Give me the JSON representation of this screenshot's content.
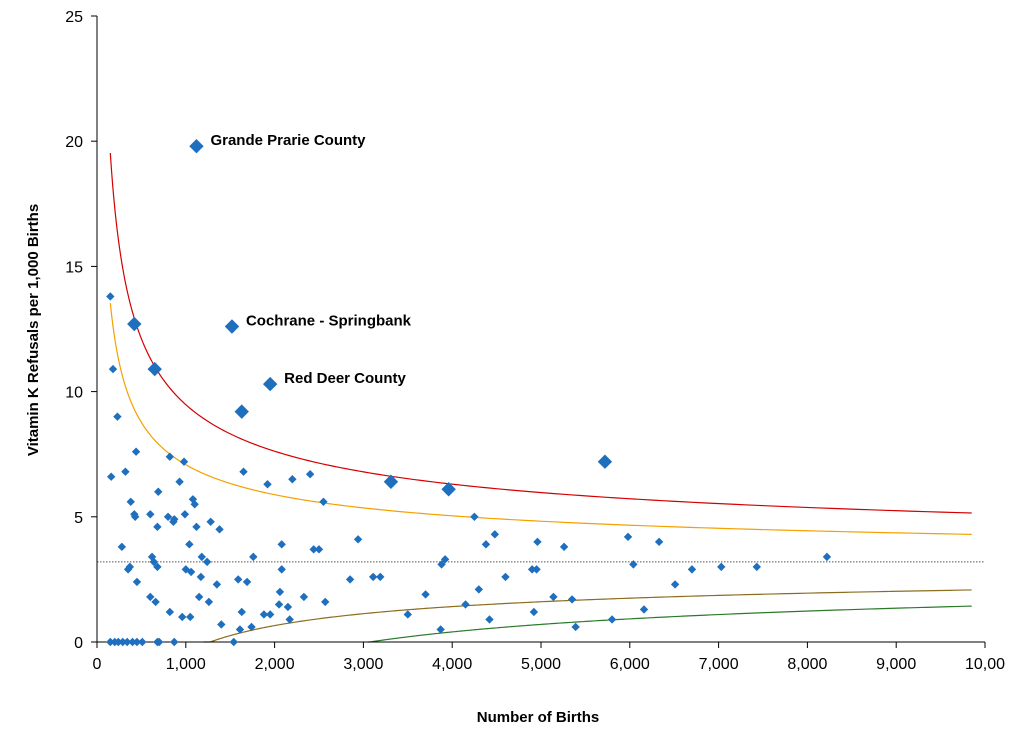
{
  "chart_data": {
    "type": "scatter",
    "xlabel": "Number of Births",
    "ylabel": "Vitamin K Refusals per 1,000 Births",
    "xlim": [
      0,
      10000
    ],
    "ylim": [
      0,
      25
    ],
    "grid": false,
    "x_tick_labels": [
      "0",
      "1,000",
      "2,000",
      "3,000",
      "4,000",
      "5,000",
      "6,000",
      "7,000",
      "8,000",
      "9,000",
      "10,00"
    ],
    "y_tick_labels": [
      "0",
      "5",
      "10",
      "15",
      "20",
      "25"
    ],
    "reference_line": {
      "y": 3.2,
      "style": "dotted",
      "color": "#555555"
    },
    "control_limits": [
      {
        "color": "#d40000",
        "x_start": 150,
        "x_end": 9850,
        "approx_values": [
          [
            150,
            19.4
          ],
          [
            1000,
            9.9
          ],
          [
            2000,
            7.7
          ],
          [
            4000,
            6.2
          ],
          [
            6000,
            5.6
          ],
          [
            9850,
            5.0
          ]
        ]
      },
      {
        "color": "#f5a000",
        "x_start": 150,
        "x_end": 9850,
        "approx_values": [
          [
            150,
            13.5
          ],
          [
            1000,
            7.2
          ],
          [
            2000,
            5.9
          ],
          [
            4000,
            5.0
          ],
          [
            6000,
            4.6
          ],
          [
            9850,
            4.3
          ]
        ]
      },
      {
        "color": "#8b6d1f",
        "x_start": 1200,
        "x_end": 9850,
        "approx_values": [
          [
            1200,
            0.0
          ],
          [
            2000,
            0.5
          ],
          [
            4000,
            1.4
          ],
          [
            6000,
            1.8
          ],
          [
            9850,
            2.1
          ]
        ]
      },
      {
        "color": "#2b7a2b",
        "x_start": 3050,
        "x_end": 9850,
        "approx_values": [
          [
            3050,
            0.0
          ],
          [
            4000,
            0.4
          ],
          [
            6000,
            0.9
          ],
          [
            9850,
            1.45
          ]
        ]
      }
    ],
    "points_color": "#1f6fbf",
    "points": [
      [
        150,
        13.8
      ],
      [
        180,
        10.9
      ],
      [
        160,
        6.6
      ],
      [
        230,
        9.0
      ],
      [
        280,
        3.8
      ],
      [
        320,
        6.8
      ],
      [
        350,
        2.9
      ],
      [
        370,
        3.0
      ],
      [
        380,
        5.6
      ],
      [
        420,
        5.1
      ],
      [
        430,
        5.0
      ],
      [
        450,
        2.4
      ],
      [
        440,
        7.6
      ],
      [
        600,
        5.1
      ],
      [
        620,
        3.4
      ],
      [
        640,
        3.2
      ],
      [
        680,
        3.0
      ],
      [
        680,
        4.6
      ],
      [
        690,
        6.0
      ],
      [
        660,
        1.6
      ],
      [
        600,
        1.8
      ],
      [
        820,
        7.4
      ],
      [
        800,
        5.0
      ],
      [
        820,
        1.2
      ],
      [
        860,
        4.8
      ],
      [
        870,
        4.9
      ],
      [
        930,
        6.4
      ],
      [
        980,
        7.2
      ],
      [
        990,
        5.1
      ],
      [
        960,
        1.0
      ],
      [
        1000,
        2.9
      ],
      [
        1040,
        3.9
      ],
      [
        1060,
        2.8
      ],
      [
        1050,
        1.0
      ],
      [
        1080,
        5.7
      ],
      [
        1100,
        5.5
      ],
      [
        1120,
        4.6
      ],
      [
        1150,
        1.8
      ],
      [
        1170,
        2.6
      ],
      [
        1180,
        3.4
      ],
      [
        1240,
        3.2
      ],
      [
        1260,
        1.6
      ],
      [
        1280,
        4.8
      ],
      [
        1350,
        2.3
      ],
      [
        1380,
        4.5
      ],
      [
        1400,
        0.7
      ],
      [
        1540,
        0.0
      ],
      [
        1590,
        2.5
      ],
      [
        1610,
        0.5
      ],
      [
        1630,
        1.2
      ],
      [
        1650,
        6.8
      ],
      [
        1690,
        2.4
      ],
      [
        1740,
        0.6
      ],
      [
        1760,
        3.4
      ],
      [
        1880,
        1.1
      ],
      [
        1920,
        6.3
      ],
      [
        1950,
        1.1
      ],
      [
        2050,
        1.5
      ],
      [
        2060,
        2.0
      ],
      [
        2080,
        3.9
      ],
      [
        2080,
        2.9
      ],
      [
        2150,
        1.4
      ],
      [
        2170,
        0.9
      ],
      [
        2200,
        6.5
      ],
      [
        2330,
        1.8
      ],
      [
        2400,
        6.7
      ],
      [
        2440,
        3.7
      ],
      [
        2500,
        3.7
      ],
      [
        2550,
        5.6
      ],
      [
        2570,
        1.6
      ],
      [
        2850,
        2.5
      ],
      [
        2940,
        4.1
      ],
      [
        3110,
        2.6
      ],
      [
        3190,
        2.6
      ],
      [
        3500,
        1.1
      ],
      [
        3700,
        1.9
      ],
      [
        3870,
        0.5
      ],
      [
        3880,
        3.1
      ],
      [
        3920,
        3.3
      ],
      [
        4150,
        1.5
      ],
      [
        4250,
        5.0
      ],
      [
        4300,
        2.1
      ],
      [
        4380,
        3.9
      ],
      [
        4420,
        0.9
      ],
      [
        4480,
        4.3
      ],
      [
        4600,
        2.6
      ],
      [
        4900,
        2.9
      ],
      [
        4920,
        1.2
      ],
      [
        4950,
        2.9
      ],
      [
        4960,
        4.0
      ],
      [
        5140,
        1.8
      ],
      [
        5260,
        3.8
      ],
      [
        5350,
        1.7
      ],
      [
        5390,
        0.6
      ],
      [
        5800,
        0.9
      ],
      [
        5980,
        4.2
      ],
      [
        6040,
        3.1
      ],
      [
        6160,
        1.3
      ],
      [
        6330,
        4.0
      ],
      [
        6510,
        2.3
      ],
      [
        6700,
        2.9
      ],
      [
        7030,
        3.0
      ],
      [
        7430,
        3.0
      ],
      [
        8220,
        3.4
      ],
      [
        150,
        0
      ],
      [
        200,
        0
      ],
      [
        240,
        0
      ],
      [
        290,
        0
      ],
      [
        340,
        0
      ],
      [
        400,
        0
      ],
      [
        450,
        0
      ],
      [
        510,
        0
      ],
      [
        680,
        0
      ],
      [
        700,
        0
      ],
      [
        870,
        0
      ]
    ],
    "highlighted_points": [
      {
        "x": 1120,
        "y": 19.8,
        "label": "Grande Prarie County"
      },
      {
        "x": 1520,
        "y": 12.6,
        "label": "Cochrane - Springbank"
      },
      {
        "x": 1950,
        "y": 10.3,
        "label": "Red Deer County"
      },
      {
        "x": 420,
        "y": 12.7,
        "label": ""
      },
      {
        "x": 650,
        "y": 10.9,
        "label": ""
      },
      {
        "x": 1630,
        "y": 9.2,
        "label": ""
      },
      {
        "x": 3310,
        "y": 6.4,
        "label": ""
      },
      {
        "x": 3960,
        "y": 6.1,
        "label": ""
      },
      {
        "x": 5720,
        "y": 7.2,
        "label": ""
      }
    ]
  }
}
